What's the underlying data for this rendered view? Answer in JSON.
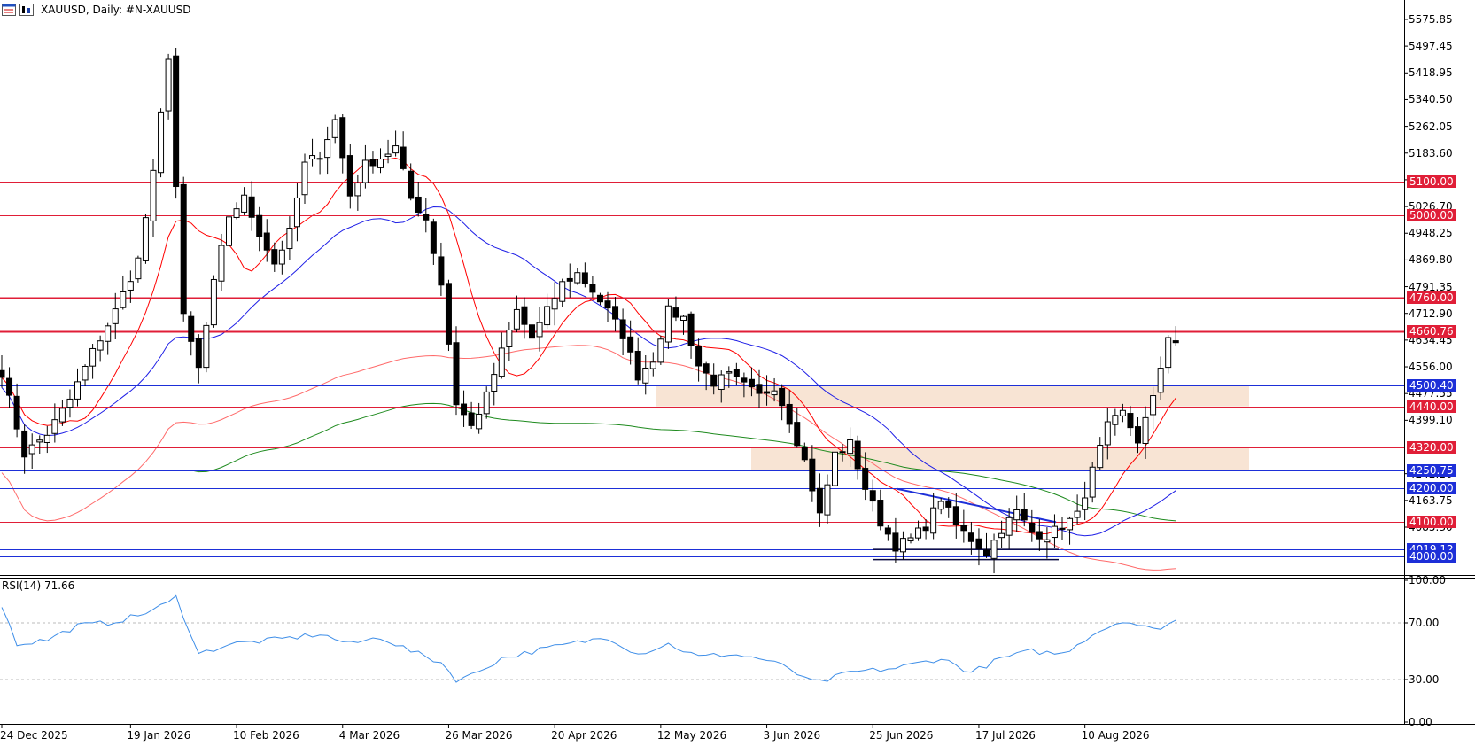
{
  "window": {
    "symbol_title": "XAUUSD, Daily:  #N-XAUUSD",
    "icons": [
      "chart-window-icon",
      "chart-type-icon"
    ]
  },
  "indicator": {
    "rsi_label": "RSI(14) 71.66"
  },
  "price_axis": {
    "ticks": [
      "5575.85",
      "5497.45",
      "5418.95",
      "5340.50",
      "5262.05",
      "5183.60",
      "5105.15",
      "5026.70",
      "4948.25",
      "4869.80",
      "4791.35",
      "4712.90",
      "4634.45",
      "4556.00",
      "4477.55",
      "4399.10",
      "4320.65",
      "4242.20",
      "4163.75",
      "4085.30"
    ]
  },
  "rsi_axis": {
    "ticks": [
      "100.00",
      "70.00",
      "30.00",
      "0.00"
    ]
  },
  "date_axis": {
    "ticks": [
      "24 Dec 2025",
      "19 Jan 2026",
      "10 Feb 2026",
      "4 Mar 2026",
      "26 Mar 2026",
      "20 Apr 2026",
      "12 May 2026",
      "3 Jun 2026",
      "25 Jun 2026",
      "17 Jul 2026",
      "10 Aug 2026"
    ]
  },
  "levels": [
    {
      "label": "5100.00",
      "value": 5100.0,
      "color": "#e01e37",
      "style": "red"
    },
    {
      "label": "5000.00",
      "value": 5000.0,
      "color": "#e01e37",
      "style": "red"
    },
    {
      "label": "4760.00",
      "value": 4760.0,
      "color": "#e01e37",
      "style": "red"
    },
    {
      "label": "4660.76",
      "value": 4660.76,
      "color": "#e01e37",
      "style": "red"
    },
    {
      "label": "4500.40",
      "value": 4500.4,
      "color": "#1d2fd8",
      "style": "blue"
    },
    {
      "label": "4440.00",
      "value": 4440.0,
      "color": "#e01e37",
      "style": "red"
    },
    {
      "label": "4320.00",
      "value": 4320.0,
      "color": "#e01e37",
      "style": "red"
    },
    {
      "label": "4250.75",
      "value": 4250.75,
      "color": "#1d2fd8",
      "style": "blue"
    },
    {
      "label": "4200.00",
      "value": 4200.0,
      "color": "#1d2fd8",
      "style": "blue"
    },
    {
      "label": "4100.00",
      "value": 4100.0,
      "color": "#e01e37",
      "style": "red"
    },
    {
      "label": "4019.12",
      "value": 4019.12,
      "color": "#1d2fd8",
      "style": "blue"
    },
    {
      "label": "4000.00",
      "value": 4000.0,
      "color": "#1d2fd8",
      "style": "blue"
    }
  ],
  "chart_data": {
    "type": "candlestick",
    "timeframe": "Daily",
    "ylim": [
      3950,
      5620
    ],
    "rsi_ylim": [
      0,
      100
    ],
    "rsi_levels": [
      70,
      30
    ],
    "colors": {
      "up_body": "#ffffff",
      "down_body": "#000000",
      "ma_fast": "#ff0000",
      "ma_mid": "#1e1ee6",
      "ma_slow_light": "#ff6a6a",
      "ma_long": "#1e8a1e",
      "rsi": "#3e8ee8",
      "zone": "#f8e4d4"
    },
    "anchors": [
      [
        0,
        4540
      ],
      [
        3,
        4300
      ],
      [
        6,
        4360
      ],
      [
        9,
        4460
      ],
      [
        12,
        4600
      ],
      [
        15,
        4720
      ],
      [
        18,
        4870
      ],
      [
        20,
        5120
      ],
      [
        22,
        5470
      ],
      [
        24,
        4700
      ],
      [
        26,
        4550
      ],
      [
        28,
        4800
      ],
      [
        30,
        5000
      ],
      [
        32,
        5050
      ],
      [
        34,
        4950
      ],
      [
        36,
        4860
      ],
      [
        38,
        4950
      ],
      [
        40,
        5150
      ],
      [
        42,
        5180
      ],
      [
        44,
        5280
      ],
      [
        46,
        5060
      ],
      [
        48,
        5150
      ],
      [
        50,
        5170
      ],
      [
        52,
        5200
      ],
      [
        54,
        5050
      ],
      [
        56,
        4990
      ],
      [
        58,
        4800
      ],
      [
        60,
        4450
      ],
      [
        62,
        4380
      ],
      [
        64,
        4470
      ],
      [
        66,
        4600
      ],
      [
        68,
        4720
      ],
      [
        70,
        4640
      ],
      [
        72,
        4720
      ],
      [
        74,
        4800
      ],
      [
        76,
        4830
      ],
      [
        78,
        4780
      ],
      [
        80,
        4720
      ],
      [
        82,
        4650
      ],
      [
        84,
        4530
      ],
      [
        86,
        4580
      ],
      [
        88,
        4720
      ],
      [
        90,
        4700
      ],
      [
        92,
        4560
      ],
      [
        94,
        4510
      ],
      [
        96,
        4530
      ],
      [
        98,
        4500
      ],
      [
        100,
        4470
      ],
      [
        102,
        4500
      ],
      [
        104,
        4400
      ],
      [
        106,
        4280
      ],
      [
        108,
        4120
      ],
      [
        110,
        4300
      ],
      [
        112,
        4330
      ],
      [
        114,
        4200
      ],
      [
        116,
        4100
      ],
      [
        118,
        4030
      ],
      [
        120,
        4050
      ],
      [
        122,
        4090
      ],
      [
        124,
        4170
      ],
      [
        126,
        4090
      ],
      [
        128,
        4050
      ],
      [
        130,
        4010
      ],
      [
        132,
        4080
      ],
      [
        134,
        4130
      ],
      [
        136,
        4070
      ],
      [
        138,
        4060
      ],
      [
        140,
        4090
      ],
      [
        142,
        4120
      ],
      [
        144,
        4250
      ],
      [
        146,
        4380
      ],
      [
        148,
        4420
      ],
      [
        150,
        4340
      ],
      [
        152,
        4460
      ],
      [
        154,
        4650
      ],
      [
        155,
        4630
      ]
    ],
    "rsi_anchors": [
      [
        0,
        82
      ],
      [
        2,
        55
      ],
      [
        6,
        58
      ],
      [
        10,
        68
      ],
      [
        14,
        70
      ],
      [
        18,
        75
      ],
      [
        22,
        84
      ],
      [
        23,
        88
      ],
      [
        25,
        62
      ],
      [
        26,
        48
      ],
      [
        30,
        55
      ],
      [
        36,
        58
      ],
      [
        42,
        62
      ],
      [
        46,
        55
      ],
      [
        50,
        60
      ],
      [
        54,
        50
      ],
      [
        58,
        42
      ],
      [
        60,
        30
      ],
      [
        62,
        33
      ],
      [
        66,
        45
      ],
      [
        72,
        52
      ],
      [
        80,
        60
      ],
      [
        84,
        48
      ],
      [
        88,
        55
      ],
      [
        92,
        46
      ],
      [
        96,
        48
      ],
      [
        100,
        45
      ],
      [
        104,
        38
      ],
      [
        106,
        30
      ],
      [
        108,
        28
      ],
      [
        112,
        35
      ],
      [
        118,
        38
      ],
      [
        124,
        45
      ],
      [
        128,
        35
      ],
      [
        132,
        45
      ],
      [
        136,
        50
      ],
      [
        140,
        48
      ],
      [
        144,
        62
      ],
      [
        148,
        72
      ],
      [
        152,
        65
      ],
      [
        155,
        71.66
      ]
    ],
    "rsi_last": 71.66
  }
}
